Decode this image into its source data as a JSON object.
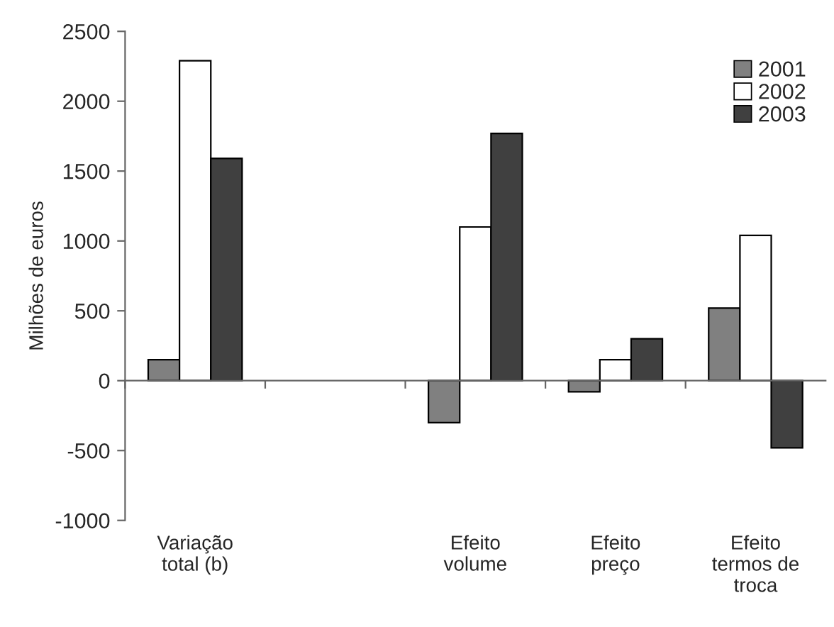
{
  "chart_data": {
    "type": "bar",
    "ylabel": "Milhões de euros",
    "categories": [
      "Variação\ntotal (b)",
      null,
      "Efeito\nvolume",
      "Efeito\npreço",
      "Efeito\ntermos de\ntroca"
    ],
    "series": [
      {
        "name": "2001",
        "color": "#808080",
        "values": [
          150,
          null,
          -300,
          -80,
          520
        ]
      },
      {
        "name": "2002",
        "color": "#ffffff",
        "values": [
          2290,
          null,
          1100,
          150,
          1040
        ]
      },
      {
        "name": "2003",
        "color": "#404040",
        "values": [
          1590,
          null,
          1770,
          300,
          -480
        ]
      }
    ],
    "ylim": [
      -1000,
      2500
    ],
    "yticks": [
      -1000,
      -500,
      0,
      500,
      1000,
      1500,
      2000,
      2500
    ],
    "legend": "top right"
  }
}
